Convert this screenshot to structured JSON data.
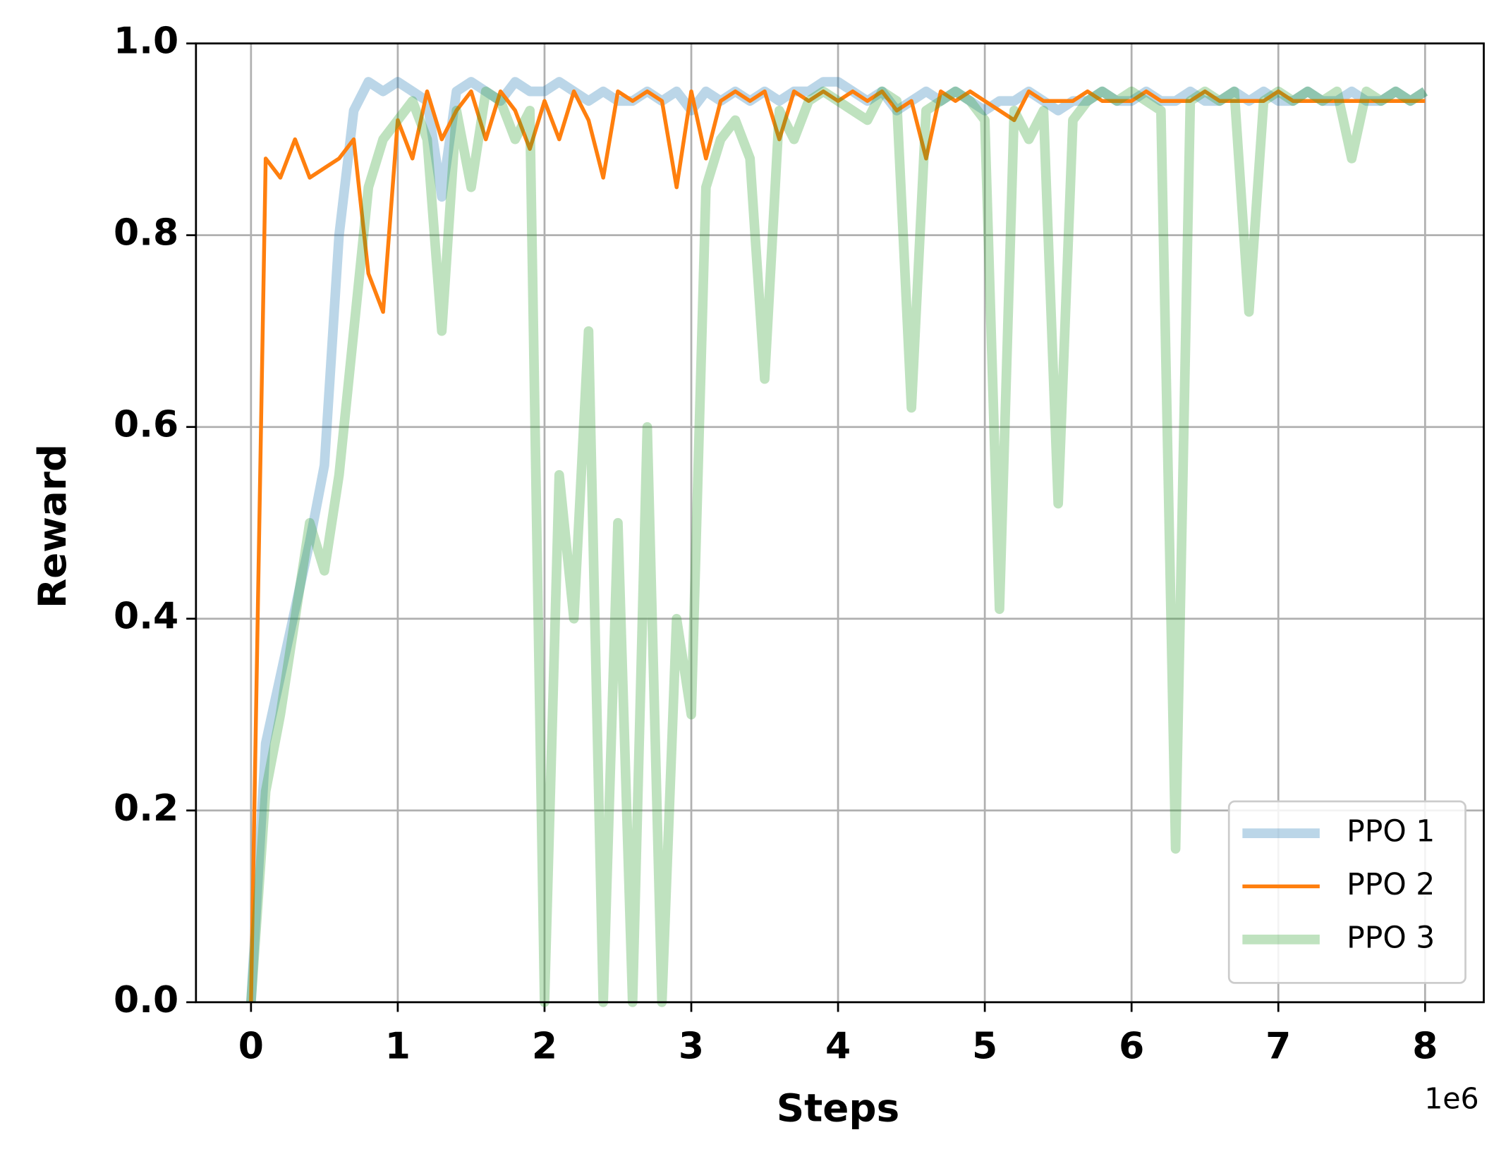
{
  "chart_data": {
    "type": "line",
    "x_label": "Steps",
    "y_label": "Reward",
    "x_offset_label": "1e6",
    "x": [
      0,
      0.1,
      0.2,
      0.3,
      0.4,
      0.5,
      0.6,
      0.7,
      0.8,
      0.9,
      1.0,
      1.1,
      1.2,
      1.3,
      1.4,
      1.5,
      1.6,
      1.7,
      1.8,
      1.9,
      2.0,
      2.1,
      2.2,
      2.3,
      2.4,
      2.5,
      2.6,
      2.7,
      2.8,
      2.9,
      3.0,
      3.1,
      3.2,
      3.3,
      3.4,
      3.5,
      3.6,
      3.7,
      3.8,
      3.9,
      4.0,
      4.1,
      4.2,
      4.3,
      4.4,
      4.5,
      4.6,
      4.7,
      4.8,
      4.9,
      5.0,
      5.1,
      5.2,
      5.3,
      5.4,
      5.5,
      5.6,
      5.7,
      5.8,
      5.9,
      6.0,
      6.1,
      6.2,
      6.3,
      6.4,
      6.5,
      6.6,
      6.7,
      6.8,
      6.9,
      7.0,
      7.1,
      7.2,
      7.3,
      7.4,
      7.5,
      7.6,
      7.7,
      7.8,
      7.9,
      8.0
    ],
    "series": [
      {
        "name": "PPO 1",
        "color": "#1f77b4",
        "alpha": 0.3,
        "width": 10,
        "values": [
          0,
          0.27,
          0.34,
          0.41,
          0.48,
          0.56,
          0.8,
          0.93,
          0.96,
          0.95,
          0.96,
          0.95,
          0.94,
          0.84,
          0.95,
          0.96,
          0.95,
          0.94,
          0.96,
          0.95,
          0.95,
          0.96,
          0.95,
          0.94,
          0.95,
          0.94,
          0.94,
          0.95,
          0.94,
          0.95,
          0.93,
          0.95,
          0.94,
          0.95,
          0.94,
          0.95,
          0.94,
          0.95,
          0.95,
          0.96,
          0.96,
          0.95,
          0.94,
          0.95,
          0.93,
          0.94,
          0.95,
          0.94,
          0.95,
          0.94,
          0.93,
          0.94,
          0.94,
          0.95,
          0.94,
          0.93,
          0.94,
          0.94,
          0.95,
          0.94,
          0.94,
          0.95,
          0.94,
          0.94,
          0.95,
          0.94,
          0.94,
          0.95,
          0.94,
          0.95,
          0.94,
          0.94,
          0.95,
          0.94,
          0.94,
          0.95,
          0.94,
          0.94,
          0.95,
          0.94,
          0.95
        ]
      },
      {
        "name": "PPO 2",
        "color": "#ff7f0e",
        "alpha": 1,
        "width": 4,
        "values": [
          0,
          0.88,
          0.86,
          0.9,
          0.86,
          0.87,
          0.88,
          0.9,
          0.76,
          0.72,
          0.92,
          0.88,
          0.95,
          0.9,
          0.93,
          0.95,
          0.9,
          0.95,
          0.93,
          0.89,
          0.94,
          0.9,
          0.95,
          0.92,
          0.86,
          0.95,
          0.94,
          0.95,
          0.94,
          0.85,
          0.95,
          0.88,
          0.94,
          0.95,
          0.94,
          0.95,
          0.9,
          0.95,
          0.94,
          0.95,
          0.94,
          0.95,
          0.94,
          0.95,
          0.93,
          0.94,
          0.88,
          0.95,
          0.94,
          0.95,
          0.94,
          0.93,
          0.92,
          0.95,
          0.94,
          0.94,
          0.94,
          0.95,
          0.94,
          0.94,
          0.94,
          0.95,
          0.94,
          0.94,
          0.94,
          0.95,
          0.94,
          0.94,
          0.94,
          0.94,
          0.95,
          0.94,
          0.94,
          0.94,
          0.94,
          0.94,
          0.94,
          0.94,
          0.94,
          0.94,
          0.94
        ]
      },
      {
        "name": "PPO 3",
        "color": "#2ca02c",
        "alpha": 0.3,
        "width": 10,
        "values": [
          0,
          0.22,
          0.3,
          0.4,
          0.5,
          0.45,
          0.55,
          0.7,
          0.85,
          0.9,
          0.92,
          0.94,
          0.9,
          0.7,
          0.93,
          0.85,
          0.95,
          0.94,
          0.9,
          0.93,
          0.0,
          0.55,
          0.4,
          0.7,
          0.0,
          0.5,
          0.0,
          0.6,
          0.0,
          0.4,
          0.3,
          0.85,
          0.9,
          0.92,
          0.88,
          0.65,
          0.93,
          0.9,
          0.94,
          0.95,
          0.94,
          0.93,
          0.92,
          0.95,
          0.94,
          0.62,
          0.93,
          0.94,
          0.95,
          0.94,
          0.92,
          0.41,
          0.93,
          0.9,
          0.93,
          0.52,
          0.92,
          0.94,
          0.95,
          0.94,
          0.95,
          0.94,
          0.93,
          0.16,
          0.94,
          0.95,
          0.94,
          0.95,
          0.72,
          0.94,
          0.95,
          0.94,
          0.95,
          0.94,
          0.95,
          0.88,
          0.95,
          0.94,
          0.95,
          0.94,
          0.95
        ]
      }
    ],
    "xlim": [
      -0.375,
      8.4
    ],
    "ylim": [
      0,
      1
    ],
    "xticks": [
      0,
      1,
      2,
      3,
      4,
      5,
      6,
      7,
      8
    ],
    "yticks": [
      {
        "value": 0,
        "label": "0.0"
      },
      0.2,
      0.4,
      0.6,
      0.8,
      {
        "value": 1,
        "label": "1.0"
      }
    ],
    "grid": true,
    "legend": "lower right"
  }
}
